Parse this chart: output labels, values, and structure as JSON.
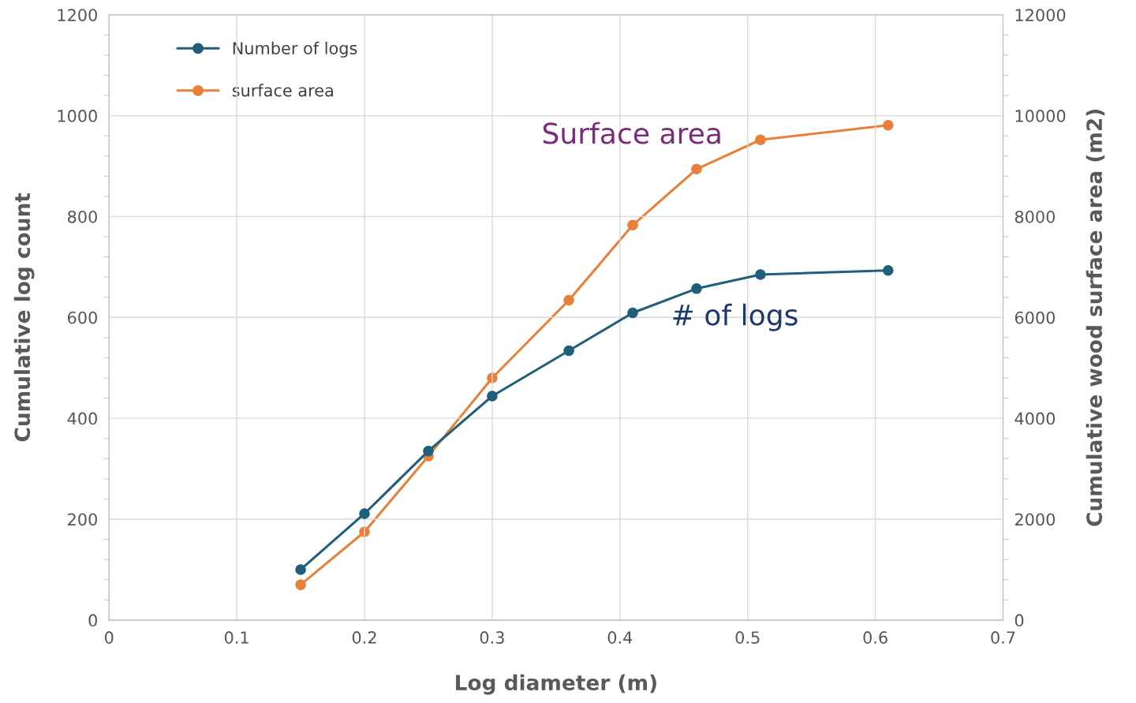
{
  "chart_data": {
    "type": "line",
    "xlabel": "Log diameter (m)",
    "ylabel": "Cumulative log count",
    "y2label": "Cumulative wood surface area (m2)",
    "x": [
      0.15,
      0.2,
      0.25,
      0.3,
      0.36,
      0.41,
      0.46,
      0.51,
      0.61
    ],
    "series": [
      {
        "name": "Number of logs",
        "color": "#1f5f7a",
        "values": [
          100,
          211,
          335,
          444,
          534,
          609,
          657,
          685,
          693
        ]
      },
      {
        "name": "surface area",
        "color": "#e8803a",
        "axis": "y2",
        "values": [
          700,
          1750,
          3250,
          4800,
          6340,
          7830,
          8940,
          9520,
          9810
        ]
      }
    ],
    "xlim": [
      0,
      0.7
    ],
    "xticks": [
      0,
      0.1,
      0.2,
      0.3,
      0.4,
      0.5,
      0.6,
      0.7
    ],
    "ylim": [
      0,
      1200
    ],
    "yticks": [
      0,
      200,
      400,
      600,
      800,
      1000,
      1200
    ],
    "y2lim": [
      0,
      12000
    ],
    "y2ticks": [
      0,
      2000,
      4000,
      6000,
      8000,
      10000,
      12000
    ],
    "grid": true,
    "legend": "top left",
    "marker": "circle",
    "line_style": "solid",
    "annotations": [
      "Surface area",
      "# of logs"
    ]
  }
}
